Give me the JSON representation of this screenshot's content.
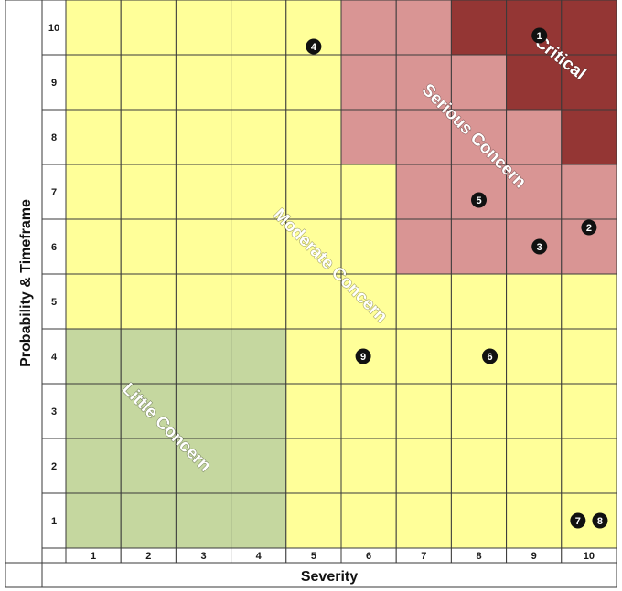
{
  "axes": {
    "x_title": "Severity",
    "y_title": "Probability & Timeframe",
    "x_ticks": [
      "1",
      "2",
      "3",
      "4",
      "5",
      "6",
      "7",
      "8",
      "9",
      "10"
    ],
    "y_ticks": [
      "1",
      "2",
      "3",
      "4",
      "5",
      "6",
      "7",
      "8",
      "9",
      "10"
    ]
  },
  "zones": {
    "little": {
      "label": "Little Concern",
      "color": "#c5d79f"
    },
    "moderate": {
      "label": "Moderate Concern",
      "color": "#ffff99"
    },
    "serious": {
      "label": "Serious Concern",
      "color": "#d99594"
    },
    "critical": {
      "label": "Critical",
      "color": "#943634"
    }
  },
  "grid_zones": {
    "rows_top_to_bottom": [
      [
        "M",
        "M",
        "M",
        "M",
        "M",
        "S",
        "S",
        "C",
        "C",
        "C"
      ],
      [
        "M",
        "M",
        "M",
        "M",
        "M",
        "S",
        "S",
        "S",
        "C",
        "C"
      ],
      [
        "M",
        "M",
        "M",
        "M",
        "M",
        "S",
        "S",
        "S",
        "S",
        "C"
      ],
      [
        "M",
        "M",
        "M",
        "M",
        "M",
        "M",
        "S",
        "S",
        "S",
        "S"
      ],
      [
        "M",
        "M",
        "M",
        "M",
        "M",
        "M",
        "S",
        "S",
        "S",
        "S"
      ],
      [
        "M",
        "M",
        "M",
        "M",
        "M",
        "M",
        "M",
        "M",
        "M",
        "M"
      ],
      [
        "L",
        "L",
        "L",
        "L",
        "M",
        "M",
        "M",
        "M",
        "M",
        "M"
      ],
      [
        "L",
        "L",
        "L",
        "L",
        "M",
        "M",
        "M",
        "M",
        "M",
        "M"
      ],
      [
        "L",
        "L",
        "L",
        "L",
        "M",
        "M",
        "M",
        "M",
        "M",
        "M"
      ],
      [
        "L",
        "L",
        "L",
        "L",
        "M",
        "M",
        "M",
        "M",
        "M",
        "M"
      ]
    ]
  },
  "markers": [
    {
      "label": "1",
      "severity": 9.1,
      "probability": 9.85
    },
    {
      "label": "2",
      "severity": 10.0,
      "probability": 6.35
    },
    {
      "label": "3",
      "severity": 9.1,
      "probability": 6.0
    },
    {
      "label": "4",
      "severity": 5.0,
      "probability": 9.65
    },
    {
      "label": "5",
      "severity": 8.0,
      "probability": 6.85
    },
    {
      "label": "6",
      "severity": 8.2,
      "probability": 4.0
    },
    {
      "label": "7",
      "severity": 9.8,
      "probability": 1.0
    },
    {
      "label": "8",
      "severity": 10.2,
      "probability": 1.0
    },
    {
      "label": "9",
      "severity": 5.9,
      "probability": 4.0
    }
  ]
}
